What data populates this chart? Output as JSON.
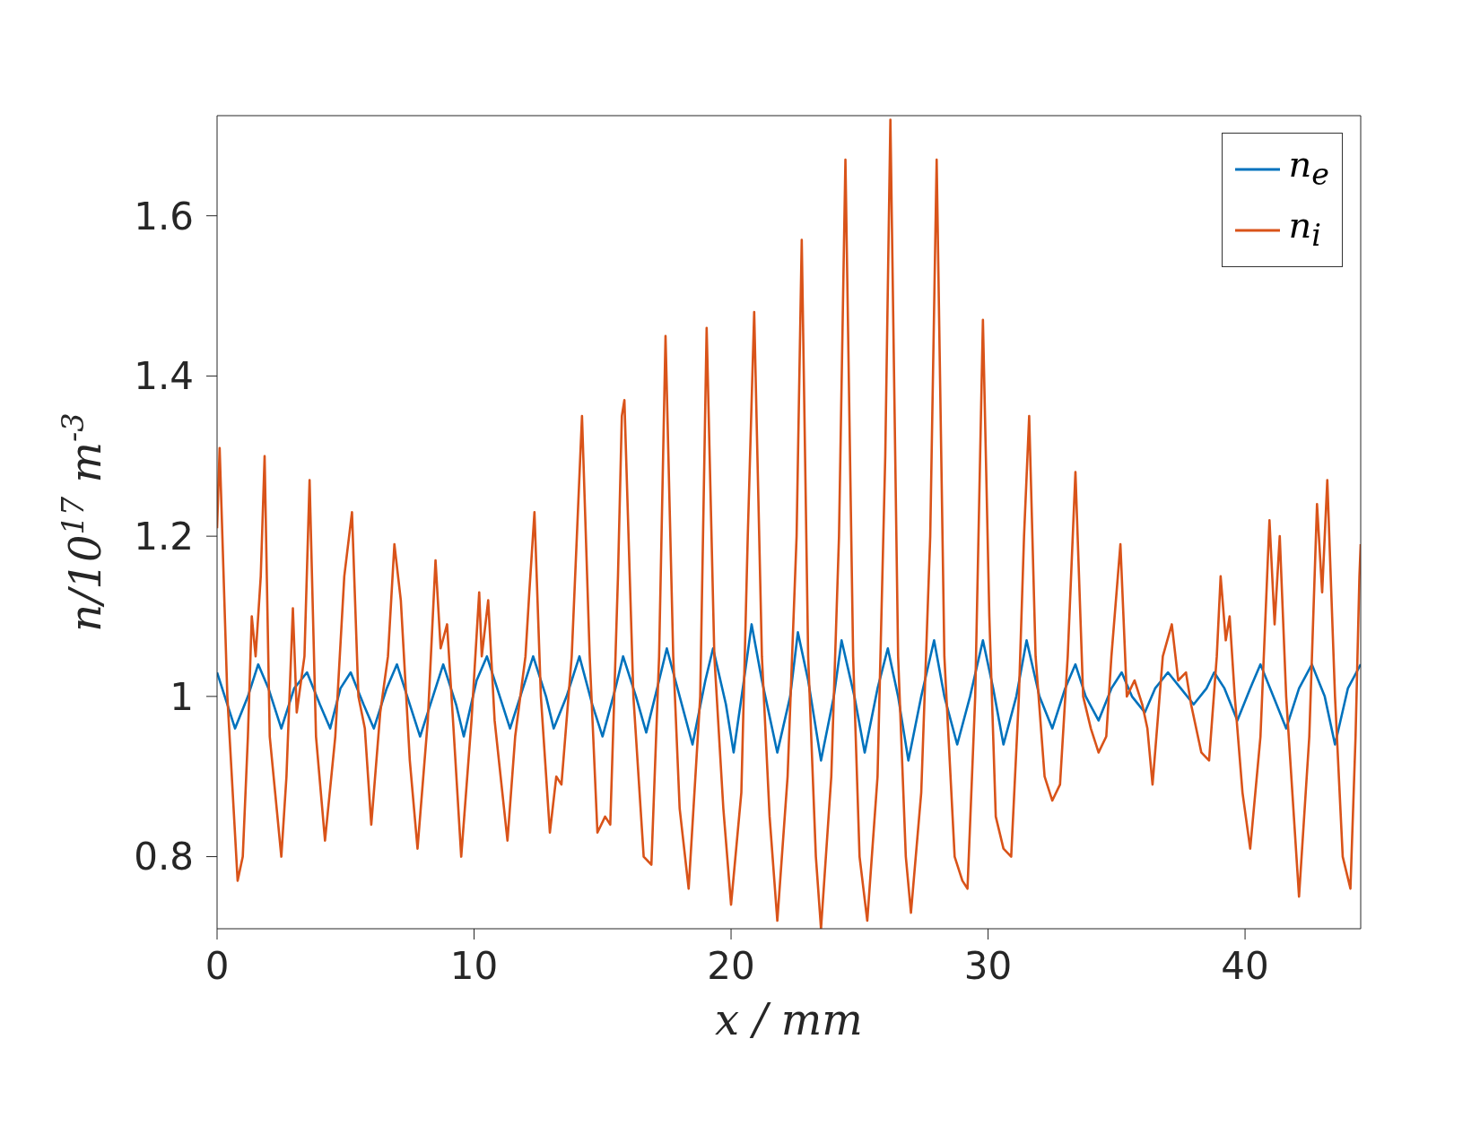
{
  "chart_data": {
    "type": "line",
    "xlabel": "x / mm",
    "ylabel": "n/10$^{17}$ m$^{-3}$",
    "xlim": [
      0,
      44.5
    ],
    "ylim": [
      0.71,
      1.725
    ],
    "xticks": [
      0,
      10,
      20,
      30,
      40
    ],
    "yticks": [
      0.8,
      1,
      1.2,
      1.4,
      1.6
    ],
    "legend": "top right",
    "marker": "none",
    "line_style": "solid",
    "series": [
      {
        "name": "n$_{e}$",
        "color": "#0072bd",
        "x": [
          0,
          0.3,
          0.7,
          1.2,
          1.6,
          2.0,
          2.5,
          3.0,
          3.5,
          4.0,
          4.4,
          4.8,
          5.2,
          5.7,
          6.1,
          6.6,
          7.0,
          7.5,
          7.9,
          8.4,
          8.8,
          9.3,
          9.6,
          10.1,
          10.5,
          11.0,
          11.4,
          11.9,
          12.3,
          12.8,
          13.1,
          13.6,
          14.1,
          14.6,
          15.0,
          15.5,
          15.8,
          16.3,
          16.7,
          17.2,
          17.5,
          18.0,
          18.5,
          19.0,
          19.3,
          19.8,
          20.1,
          20.5,
          20.8,
          21.2,
          21.8,
          22.3,
          22.6,
          23.0,
          23.5,
          24.0,
          24.3,
          24.8,
          25.2,
          25.7,
          26.1,
          26.5,
          26.9,
          27.4,
          27.9,
          28.3,
          28.8,
          29.3,
          29.8,
          30.2,
          30.6,
          31.1,
          31.5,
          32.0,
          32.5,
          33.0,
          33.4,
          33.8,
          34.3,
          34.8,
          35.2,
          35.6,
          36.1,
          36.5,
          37.0,
          37.5,
          38.0,
          38.5,
          38.8,
          39.2,
          39.7,
          40.2,
          40.6,
          41.1,
          41.6,
          42.1,
          42.6,
          43.1,
          43.5,
          44.0,
          44.5
        ],
        "values": [
          1.03,
          1.0,
          0.96,
          1.0,
          1.04,
          1.01,
          0.96,
          1.01,
          1.03,
          0.99,
          0.96,
          1.01,
          1.03,
          0.99,
          0.96,
          1.01,
          1.04,
          0.99,
          0.95,
          1.0,
          1.04,
          0.99,
          0.95,
          1.02,
          1.05,
          1.0,
          0.96,
          1.01,
          1.05,
          1.0,
          0.96,
          1.0,
          1.05,
          0.99,
          0.95,
          1.01,
          1.05,
          1.0,
          0.955,
          1.02,
          1.06,
          1.0,
          0.94,
          1.02,
          1.06,
          0.99,
          0.93,
          1.02,
          1.09,
          1.02,
          0.93,
          1.0,
          1.08,
          1.02,
          0.92,
          1.0,
          1.07,
          1.0,
          0.93,
          1.01,
          1.06,
          1.0,
          0.92,
          1.0,
          1.07,
          1.0,
          0.94,
          1.0,
          1.07,
          1.01,
          0.94,
          1.0,
          1.07,
          1.0,
          0.96,
          1.01,
          1.04,
          1.0,
          0.97,
          1.01,
          1.03,
          1.0,
          0.98,
          1.01,
          1.03,
          1.01,
          0.99,
          1.01,
          1.03,
          1.01,
          0.97,
          1.01,
          1.04,
          1.0,
          0.96,
          1.01,
          1.04,
          1.0,
          0.94,
          1.01,
          1.04
        ]
      },
      {
        "name": "n$_{i}$",
        "color": "#d95319",
        "x": [
          0,
          0.1,
          0.4,
          0.8,
          1.0,
          1.2,
          1.35,
          1.5,
          1.7,
          1.85,
          2.05,
          2.5,
          2.7,
          2.95,
          3.1,
          3.4,
          3.6,
          3.85,
          4.2,
          4.6,
          4.95,
          5.25,
          5.5,
          5.75,
          6.0,
          6.35,
          6.65,
          6.9,
          7.15,
          7.5,
          7.8,
          8.2,
          8.5,
          8.7,
          8.95,
          9.2,
          9.5,
          9.9,
          10.2,
          10.3,
          10.55,
          10.8,
          11.3,
          11.6,
          12.0,
          12.15,
          12.35,
          12.6,
          12.95,
          13.2,
          13.4,
          13.8,
          14.0,
          14.2,
          14.5,
          14.8,
          15.1,
          15.3,
          15.6,
          15.75,
          15.85,
          16.2,
          16.6,
          16.9,
          17.2,
          17.45,
          17.75,
          18.0,
          18.35,
          18.8,
          19.05,
          19.35,
          19.7,
          20.0,
          20.4,
          20.65,
          20.9,
          21.2,
          21.5,
          21.8,
          22.2,
          22.55,
          22.75,
          23.0,
          23.3,
          23.5,
          23.9,
          24.2,
          24.45,
          24.75,
          25.0,
          25.3,
          25.7,
          26.0,
          26.2,
          26.5,
          26.8,
          27.0,
          27.4,
          27.75,
          28.0,
          28.3,
          28.7,
          29.0,
          29.2,
          29.5,
          29.8,
          30.05,
          30.3,
          30.6,
          30.9,
          31.2,
          31.4,
          31.6,
          31.85,
          32.2,
          32.5,
          32.8,
          33.1,
          33.4,
          33.7,
          34.0,
          34.3,
          34.6,
          34.8,
          35.15,
          35.4,
          35.7,
          36.0,
          36.2,
          36.4,
          36.8,
          37.15,
          37.4,
          37.7,
          37.9,
          38.3,
          38.6,
          38.9,
          39.05,
          39.25,
          39.4,
          39.6,
          39.9,
          40.2,
          40.6,
          40.95,
          41.15,
          41.35,
          41.6,
          41.9,
          42.1,
          42.5,
          42.8,
          43.0,
          43.2,
          43.5,
          43.8,
          44.1,
          44.3,
          44.45,
          44.5
        ],
        "values": [
          1.21,
          1.31,
          1.0,
          0.77,
          0.8,
          0.95,
          1.1,
          1.05,
          1.15,
          1.3,
          0.95,
          0.8,
          0.9,
          1.11,
          0.98,
          1.05,
          1.27,
          0.95,
          0.82,
          0.95,
          1.15,
          1.23,
          1.0,
          0.96,
          0.84,
          0.98,
          1.05,
          1.19,
          1.12,
          0.92,
          0.81,
          0.97,
          1.17,
          1.06,
          1.09,
          0.96,
          0.8,
          0.97,
          1.13,
          1.05,
          1.12,
          0.97,
          0.82,
          0.95,
          1.05,
          1.13,
          1.23,
          1.0,
          0.83,
          0.9,
          0.89,
          1.05,
          1.2,
          1.35,
          1.05,
          0.83,
          0.85,
          0.84,
          1.15,
          1.35,
          1.37,
          1.0,
          0.8,
          0.79,
          1.05,
          1.45,
          1.05,
          0.86,
          0.76,
          1.0,
          1.46,
          1.05,
          0.86,
          0.74,
          0.88,
          1.2,
          1.48,
          1.05,
          0.85,
          0.72,
          0.9,
          1.2,
          1.57,
          1.05,
          0.8,
          0.71,
          0.9,
          1.2,
          1.67,
          1.05,
          0.8,
          0.72,
          0.9,
          1.3,
          1.72,
          1.05,
          0.8,
          0.73,
          0.88,
          1.2,
          1.67,
          1.05,
          0.8,
          0.77,
          0.76,
          1.0,
          1.47,
          1.1,
          0.85,
          0.81,
          0.8,
          1.0,
          1.2,
          1.35,
          1.05,
          0.9,
          0.87,
          0.89,
          1.05,
          1.28,
          1.0,
          0.96,
          0.93,
          0.95,
          1.05,
          1.19,
          1.0,
          1.02,
          0.99,
          0.96,
          0.89,
          1.05,
          1.09,
          1.02,
          1.03,
          0.99,
          0.93,
          0.92,
          1.05,
          1.15,
          1.07,
          1.1,
          1.0,
          0.88,
          0.81,
          0.95,
          1.22,
          1.09,
          1.2,
          1.0,
          0.85,
          0.75,
          0.95,
          1.24,
          1.13,
          1.27,
          1.0,
          0.8,
          0.76,
          0.95,
          1.15,
          1.19
        ]
      }
    ]
  }
}
